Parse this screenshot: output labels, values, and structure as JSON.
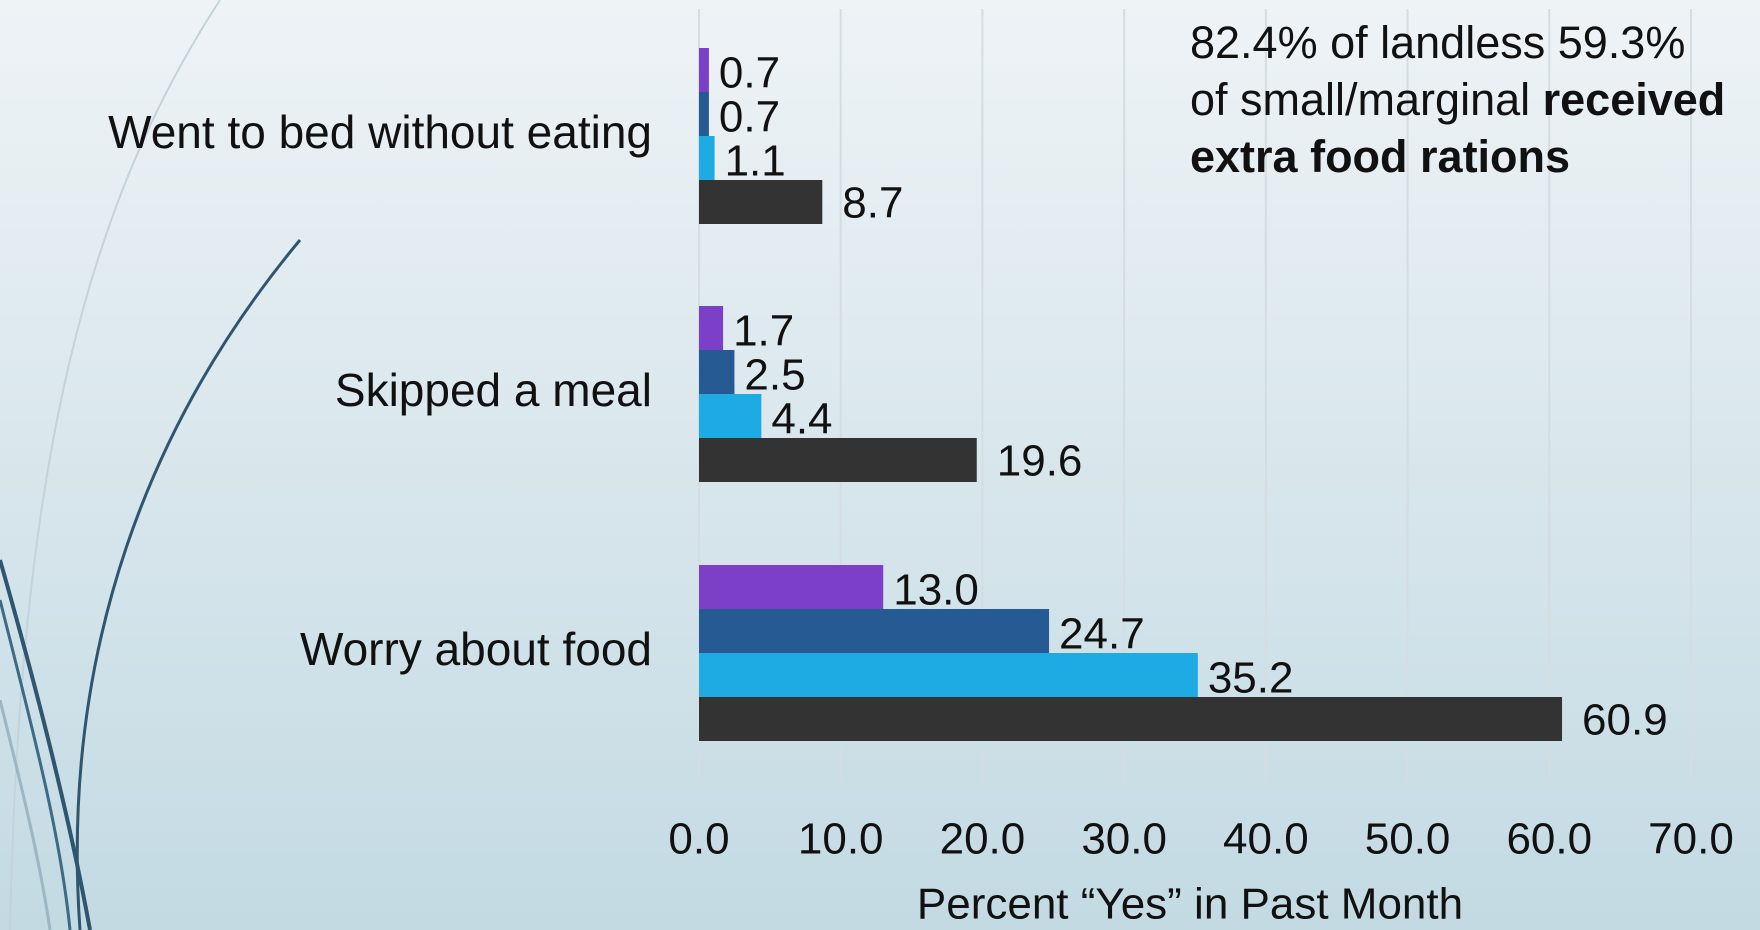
{
  "chart_data": {
    "type": "hbar",
    "categories": [
      "Went to bed without eating",
      "Skipped a meal",
      "Worry about food"
    ],
    "series": [
      {
        "color": "#7b3fc8",
        "values": [
          0.7,
          1.7,
          13.0
        ],
        "value_labels": [
          "0.7",
          "1.7",
          "13.0"
        ]
      },
      {
        "color": "#255a92",
        "values": [
          0.7,
          2.5,
          24.7
        ],
        "value_labels": [
          "0.7",
          "2.5",
          "24.7"
        ]
      },
      {
        "color": "#1eaae2",
        "values": [
          1.1,
          4.4,
          35.2
        ],
        "value_labels": [
          "1.1",
          "4.4",
          "35.2"
        ]
      },
      {
        "color": "#333333",
        "values": [
          8.7,
          19.6,
          60.9
        ],
        "value_labels": [
          "8.7",
          "19.6",
          "60.9"
        ]
      }
    ],
    "xlim": [
      0,
      70
    ],
    "xticks": [
      {
        "value": 0,
        "label": "0.0"
      },
      {
        "value": 10,
        "label": "10.0"
      },
      {
        "value": 20,
        "label": "20.0"
      },
      {
        "value": 30,
        "label": "30.0"
      },
      {
        "value": 40,
        "label": "40.0"
      },
      {
        "value": 50,
        "label": "50.0"
      },
      {
        "value": 60,
        "label": "60.0"
      },
      {
        "value": 70,
        "label": "70.0"
      }
    ],
    "xlabel": "Percent “Yes” in Past Month",
    "grid": true,
    "annotation": "82.4% of landless 59.3% of small/marginal",
    "annotation_bold": "received extra food rations"
  }
}
